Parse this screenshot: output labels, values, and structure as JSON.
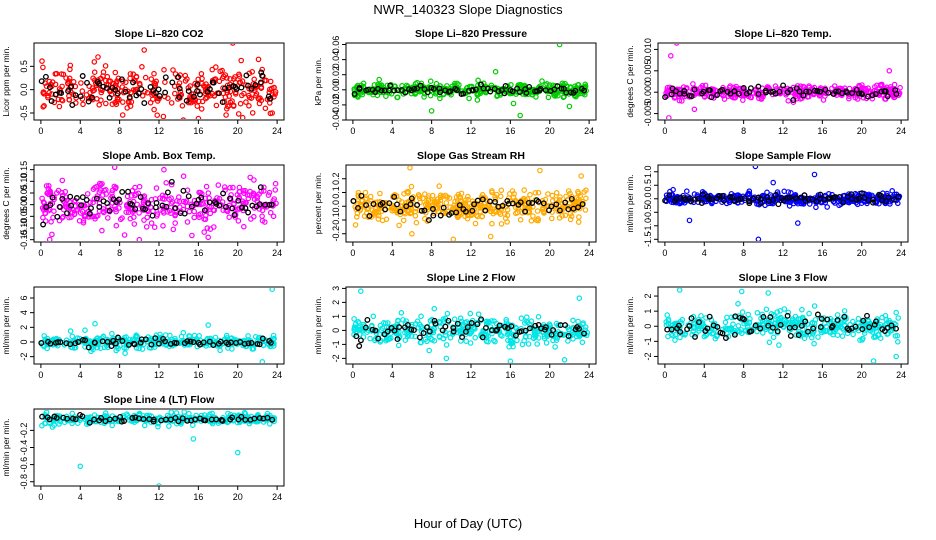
{
  "figure": {
    "title": "NWR_140323  Slope Diagnostics",
    "xlabel": "Hour of Day (UTC)"
  },
  "chart_data": [
    {
      "type": "scatter",
      "title": "Slope Li–820 CO2",
      "ylabel": "Licor ppm per min.",
      "x_ticks": [
        "0",
        "4",
        "8",
        "12",
        "16",
        "20",
        "24"
      ],
      "y_ticks": [
        "-0.5",
        "0.0",
        "0.5"
      ],
      "ylim": [
        -0.65,
        1.0
      ],
      "xlim": [
        -0.7,
        24.7
      ],
      "color": "#ff0000",
      "spread": 0.3,
      "n_points": 330,
      "n_black": 70,
      "outliers": [
        [
          5.8,
          0.7
        ],
        [
          10.5,
          0.85
        ],
        [
          19.5,
          1.0
        ],
        [
          16,
          -0.62
        ],
        [
          20.5,
          -0.6
        ],
        [
          23.5,
          -0.5
        ]
      ]
    },
    {
      "type": "scatter",
      "title": "Slope Li–820 Pressure",
      "ylabel": "kPa per min.",
      "x_ticks": [
        "0",
        "4",
        "8",
        "12",
        "16",
        "20",
        "24"
      ],
      "y_ticks": [
        "-0.04",
        "-0.02",
        "0.00",
        "0.02",
        "0.04",
        "0.06"
      ],
      "ylim": [
        -0.04,
        0.062
      ],
      "xlim": [
        -0.7,
        24.7
      ],
      "color": "#00cc00",
      "spread": 0.006,
      "n_points": 380,
      "n_black": 70,
      "outliers": [
        [
          21,
          0.06
        ],
        [
          8,
          -0.028
        ],
        [
          17,
          -0.034
        ],
        [
          22,
          -0.022
        ],
        [
          14.5,
          0.024
        ]
      ]
    },
    {
      "type": "scatter",
      "title": "Slope Li–820 Temp.",
      "ylabel": "degrees C per min.",
      "x_ticks": [
        "0",
        "4",
        "8",
        "12",
        "16",
        "20",
        "24"
      ],
      "y_ticks": [
        "-0.005",
        "0.000",
        "0.005",
        "0.010"
      ],
      "ylim": [
        -0.0065,
        0.0115
      ],
      "xlim": [
        -0.7,
        24.7
      ],
      "color": "#ff00ff",
      "spread": 0.0011,
      "n_points": 360,
      "n_black": 70,
      "outliers": [
        [
          1.2,
          0.0115
        ],
        [
          0.6,
          0.0085
        ],
        [
          22.8,
          0.005
        ],
        [
          3.0,
          -0.004
        ],
        [
          0.4,
          -0.006
        ]
      ]
    },
    {
      "type": "scatter",
      "title": "Slope Amb. Box Temp.",
      "ylabel": "degrees C per min.",
      "x_ticks": [
        "0",
        "4",
        "8",
        "12",
        "16",
        "20",
        "24"
      ],
      "y_ticks": [
        "-0.15",
        "-0.10",
        "-0.05",
        "0.00",
        "0.05",
        "0.10",
        "0.15"
      ],
      "ylim": [
        -0.16,
        0.17
      ],
      "xlim": [
        -0.7,
        24.7
      ],
      "color": "#ff00ff",
      "spread": 0.06,
      "n_points": 360,
      "n_black": 70,
      "outliers": [
        [
          7.5,
          0.16
        ],
        [
          10,
          -0.15
        ],
        [
          12.5,
          0.15
        ],
        [
          17,
          -0.14
        ],
        [
          8.5,
          -0.13
        ]
      ]
    },
    {
      "type": "scatter",
      "title": "Slope Gas Stream RH",
      "ylabel": "percent per min.",
      "x_ticks": [
        "0",
        "4",
        "8",
        "12",
        "16",
        "20",
        "24"
      ],
      "y_ticks": [
        "-0.2",
        "-0.1",
        "0.0",
        "0.1",
        "0.2"
      ],
      "ylim": [
        -0.26,
        0.3
      ],
      "xlim": [
        -0.7,
        24.7
      ],
      "color": "#ffaa00",
      "spread": 0.07,
      "n_points": 420,
      "n_black": 60,
      "outliers": [
        [
          5.8,
          0.28
        ],
        [
          10.2,
          -0.24
        ],
        [
          19,
          0.26
        ],
        [
          6,
          -0.2
        ],
        [
          14,
          -0.22
        ],
        [
          23.2,
          0.22
        ]
      ]
    },
    {
      "type": "scatter",
      "title": "Slope Sample Flow",
      "ylabel": "ml/min per min.",
      "x_ticks": [
        "0",
        "4",
        "8",
        "12",
        "16",
        "20",
        "24"
      ],
      "y_ticks": [
        "-1.5",
        "-1.0",
        "-0.5",
        "0.0",
        "0.5",
        "1.0"
      ],
      "ylim": [
        -1.6,
        1.25
      ],
      "xlim": [
        -0.7,
        24.7
      ],
      "color": "#0000ff",
      "spread": 0.15,
      "n_points": 380,
      "n_black": 75,
      "outliers": [
        [
          9.2,
          1.2
        ],
        [
          9.5,
          -1.5
        ],
        [
          15.2,
          0.9
        ],
        [
          2.5,
          -0.8
        ],
        [
          13.5,
          -0.9
        ],
        [
          11,
          0.6
        ]
      ]
    },
    {
      "type": "scatter",
      "title": "Slope Line 1 Flow",
      "ylabel": "ml/min per min.",
      "x_ticks": [
        "0",
        "4",
        "8",
        "12",
        "16",
        "20",
        "24"
      ],
      "y_ticks": [
        "-2",
        "0",
        "2",
        "4",
        "6"
      ],
      "ylim": [
        -3,
        7.5
      ],
      "xlim": [
        -0.7,
        24.7
      ],
      "color": "#00e5e5",
      "spread": 0.6,
      "n_points": 330,
      "n_black": 60,
      "outliers": [
        [
          23.5,
          7.2
        ],
        [
          22.5,
          -2.7
        ],
        [
          5.5,
          2.5
        ],
        [
          17,
          2.3
        ]
      ]
    },
    {
      "type": "scatter",
      "title": "Slope Line 2 Flow",
      "ylabel": "ml/min per min.",
      "x_ticks": [
        "0",
        "4",
        "8",
        "12",
        "16",
        "20",
        "24"
      ],
      "y_ticks": [
        "-2",
        "-1",
        "0",
        "1",
        "2",
        "3"
      ],
      "ylim": [
        -2.4,
        3.1
      ],
      "xlim": [
        -0.7,
        24.7
      ],
      "color": "#00e5e5",
      "spread": 0.65,
      "n_points": 380,
      "n_black": 65,
      "outliers": [
        [
          0.8,
          2.8
        ],
        [
          16,
          -2.2
        ],
        [
          21.5,
          -2.1
        ],
        [
          23,
          2.3
        ],
        [
          9.5,
          -2.0
        ]
      ]
    },
    {
      "type": "scatter",
      "title": "Slope Line 3 Flow",
      "ylabel": "ml/min per min.",
      "x_ticks": [
        "0",
        "4",
        "8",
        "12",
        "16",
        "20",
        "24"
      ],
      "y_ticks": [
        "-2",
        "-1",
        "0",
        "1",
        "2"
      ],
      "ylim": [
        -2.5,
        2.6
      ],
      "xlim": [
        -0.7,
        24.7
      ],
      "color": "#00e5e5",
      "spread": 0.6,
      "n_points": 380,
      "n_black": 65,
      "outliers": [
        [
          1.5,
          2.4
        ],
        [
          7.8,
          2.3
        ],
        [
          21.2,
          -2.3
        ],
        [
          23.5,
          -2.0
        ],
        [
          10.5,
          2.2
        ]
      ]
    },
    {
      "type": "scatter",
      "title": "Slope Line 4 (LT) Flow",
      "ylabel": "ml/min per min.",
      "x_ticks": [
        "0",
        "4",
        "8",
        "12",
        "16",
        "20",
        "24"
      ],
      "y_ticks": [
        "-0.8",
        "-0.6",
        "-0.4",
        "-0.2"
      ],
      "ylim": [
        -0.85,
        0.05
      ],
      "xlim": [
        -0.7,
        24.7
      ],
      "color": "#00e5e5",
      "spread": 0.04,
      "n_points": 300,
      "n_black": 55,
      "outliers": [
        [
          4,
          -0.62
        ],
        [
          12,
          -0.85
        ],
        [
          20,
          -0.46
        ],
        [
          15.5,
          -0.3
        ]
      ]
    }
  ]
}
